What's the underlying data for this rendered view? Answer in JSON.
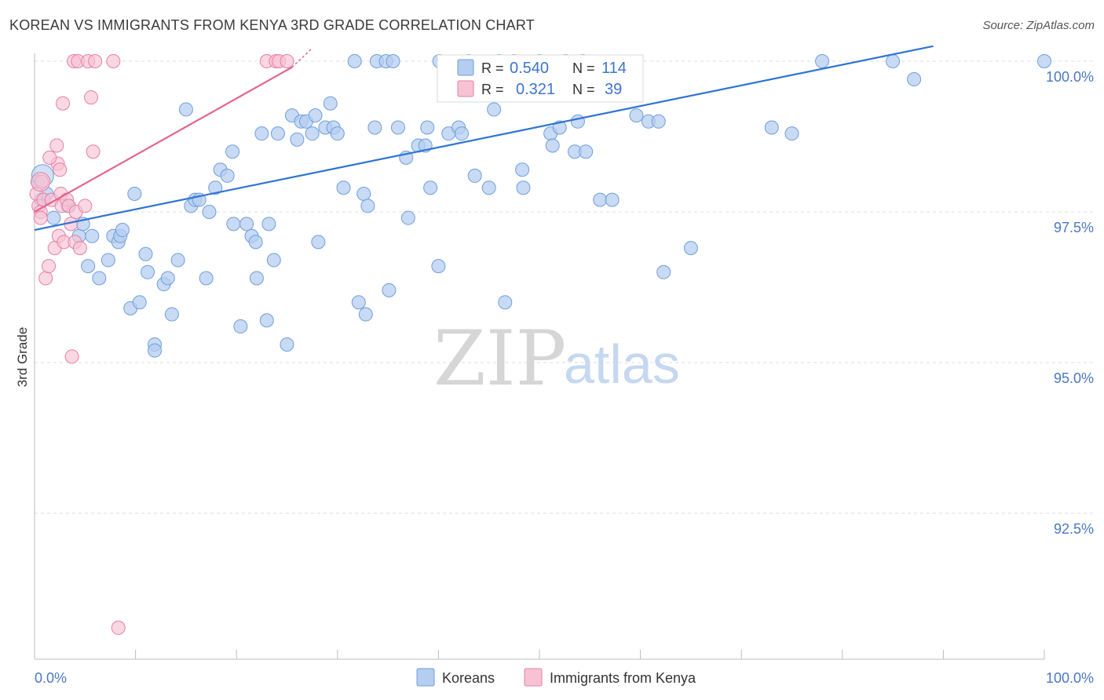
{
  "title": "KOREAN VS IMMIGRANTS FROM KENYA 3RD GRADE CORRELATION CHART",
  "source": "Source: ZipAtlas.com",
  "watermark": {
    "zip": "ZIP",
    "atlas": "atlas"
  },
  "colors": {
    "blue": "#6f9fdc",
    "blue_fill": "#b5cdf0",
    "blue_line": "#2e74d2",
    "pink": "#e77fa3",
    "pink_fill": "#f7c3d4",
    "pink_line": "#e3648f",
    "grid": "#dcdcdc",
    "tick_text": "#4a78c2"
  },
  "legend": {
    "rows": [
      {
        "r_label": "R =",
        "r_value": "0.540",
        "n_label": "N =",
        "n_value": "114",
        "series": "blue"
      },
      {
        "r_label": "R =",
        "r_value": "0.321",
        "n_label": "N =",
        "n_value": "39",
        "series": "pink"
      }
    ]
  },
  "bottom_legend": [
    {
      "label": "Koreans",
      "series": "blue"
    },
    {
      "label": "Immigrants from Kenya",
      "series": "pink"
    }
  ],
  "chart_data": {
    "type": "scatter",
    "title": "KOREAN VS IMMIGRANTS FROM KENYA 3RD GRADE CORRELATION CHART",
    "xlabel": "",
    "ylabel": "3rd Grade",
    "xlim": [
      0,
      100
    ],
    "ylim": [
      90.0,
      100.2
    ],
    "y_ticks": [
      100.0,
      97.5,
      95.0,
      92.5
    ],
    "y_tick_labels": [
      "100.0%",
      "97.5%",
      "95.0%",
      "92.5%"
    ],
    "x_tick_labels": {
      "left": "0.0%",
      "right": "100.0%"
    },
    "grid": true,
    "series": [
      {
        "name": "Koreans",
        "color": "blue",
        "trend": {
          "x": [
            0,
            89
          ],
          "y": [
            97.2,
            100.25
          ]
        },
        "points": [
          [
            0.3,
            98.0
          ],
          [
            0.7,
            97.7
          ],
          [
            1.2,
            97.8
          ],
          [
            1.9,
            97.4
          ],
          [
            3.3,
            97.6
          ],
          [
            4.4,
            97.1
          ],
          [
            4.8,
            97.3
          ],
          [
            5.3,
            96.6
          ],
          [
            5.7,
            97.1
          ],
          [
            6.4,
            96.4
          ],
          [
            7.3,
            96.7
          ],
          [
            7.8,
            97.1
          ],
          [
            8.3,
            97.0
          ],
          [
            8.5,
            97.1
          ],
          [
            8.7,
            97.2
          ],
          [
            9.5,
            95.9
          ],
          [
            9.9,
            97.8
          ],
          [
            10.4,
            96.0
          ],
          [
            11.0,
            96.8
          ],
          [
            11.2,
            96.5
          ],
          [
            11.9,
            95.3
          ],
          [
            11.9,
            95.2
          ],
          [
            12.8,
            96.3
          ],
          [
            13.2,
            96.4
          ],
          [
            13.6,
            95.8
          ],
          [
            14.2,
            96.7
          ],
          [
            15.0,
            99.2
          ],
          [
            15.5,
            97.6
          ],
          [
            15.9,
            97.7
          ],
          [
            16.3,
            97.7
          ],
          [
            17.0,
            96.4
          ],
          [
            17.3,
            97.5
          ],
          [
            17.9,
            97.9
          ],
          [
            18.4,
            98.2
          ],
          [
            19.1,
            98.1
          ],
          [
            19.6,
            98.5
          ],
          [
            19.7,
            97.3
          ],
          [
            20.4,
            95.6
          ],
          [
            21.0,
            97.3
          ],
          [
            21.5,
            97.1
          ],
          [
            21.9,
            97.0
          ],
          [
            22.5,
            98.8
          ],
          [
            23.0,
            95.7
          ],
          [
            23.2,
            97.3
          ],
          [
            23.7,
            96.7
          ],
          [
            24.1,
            98.8
          ],
          [
            25.0,
            95.3
          ],
          [
            25.5,
            99.1
          ],
          [
            26.0,
            98.7
          ],
          [
            26.4,
            99.0
          ],
          [
            26.9,
            99.0
          ],
          [
            27.5,
            98.8
          ],
          [
            27.8,
            99.1
          ],
          [
            28.1,
            97.0
          ],
          [
            28.8,
            98.9
          ],
          [
            29.3,
            99.3
          ],
          [
            29.6,
            98.9
          ],
          [
            30.0,
            98.8
          ],
          [
            30.6,
            97.9
          ],
          [
            31.7,
            100.0
          ],
          [
            32.1,
            96.0
          ],
          [
            32.6,
            97.8
          ],
          [
            32.8,
            95.8
          ],
          [
            33.7,
            98.9
          ],
          [
            33.9,
            100.0
          ],
          [
            34.8,
            100.0
          ],
          [
            35.1,
            96.2
          ],
          [
            35.5,
            100.0
          ],
          [
            36.0,
            98.9
          ],
          [
            36.8,
            98.4
          ],
          [
            37.0,
            97.4
          ],
          [
            38.0,
            98.6
          ],
          [
            38.7,
            98.6
          ],
          [
            38.9,
            98.9
          ],
          [
            39.2,
            97.9
          ],
          [
            40.0,
            96.6
          ],
          [
            40.1,
            100.0
          ],
          [
            41.0,
            98.8
          ],
          [
            42.0,
            98.9
          ],
          [
            42.3,
            98.8
          ],
          [
            43.0,
            100.0
          ],
          [
            43.6,
            98.1
          ],
          [
            45.0,
            97.9
          ],
          [
            46.0,
            100.0
          ],
          [
            46.6,
            96.0
          ],
          [
            47.5,
            100.0
          ],
          [
            48.3,
            98.2
          ],
          [
            48.4,
            97.9
          ],
          [
            50.0,
            100.0
          ],
          [
            51.1,
            98.8
          ],
          [
            51.3,
            98.6
          ],
          [
            52.0,
            98.9
          ],
          [
            52.6,
            100.0
          ],
          [
            53.5,
            98.5
          ],
          [
            53.8,
            99.0
          ],
          [
            54.3,
            100.0
          ],
          [
            54.6,
            98.5
          ],
          [
            56.0,
            97.7
          ],
          [
            57.2,
            97.7
          ],
          [
            59.6,
            99.1
          ],
          [
            60.8,
            99.0
          ],
          [
            61.8,
            99.0
          ],
          [
            62.3,
            96.5
          ],
          [
            65.0,
            96.9
          ],
          [
            73.0,
            98.9
          ],
          [
            75.0,
            98.8
          ],
          [
            85.0,
            100.0
          ],
          [
            87.1,
            99.7
          ],
          [
            100.0,
            100.0
          ],
          [
            78.0,
            100.0
          ],
          [
            45.5,
            99.2
          ],
          [
            33.0,
            97.6
          ],
          [
            22.0,
            96.4
          ]
        ]
      },
      {
        "name": "Immigrants from Kenya",
        "color": "pink",
        "trend": {
          "x": [
            0,
            25.5
          ],
          "y": [
            97.5,
            99.9
          ]
        },
        "trend_dashed": {
          "x": [
            25.5,
            27.4
          ],
          "y": [
            99.9,
            100.2
          ]
        },
        "points": [
          [
            0.2,
            97.8
          ],
          [
            0.4,
            97.6
          ],
          [
            0.6,
            97.5
          ],
          [
            0.6,
            97.4
          ],
          [
            0.7,
            98.0
          ],
          [
            0.9,
            97.7
          ],
          [
            1.1,
            96.4
          ],
          [
            1.4,
            96.6
          ],
          [
            1.7,
            97.7
          ],
          [
            2.0,
            96.9
          ],
          [
            2.2,
            98.6
          ],
          [
            2.3,
            98.3
          ],
          [
            2.4,
            97.1
          ],
          [
            2.5,
            98.2
          ],
          [
            2.6,
            97.8
          ],
          [
            2.7,
            97.6
          ],
          [
            2.8,
            99.3
          ],
          [
            2.9,
            97.0
          ],
          [
            3.2,
            97.7
          ],
          [
            3.4,
            97.6
          ],
          [
            3.6,
            97.3
          ],
          [
            3.7,
            95.1
          ],
          [
            3.9,
            100.0
          ],
          [
            4.0,
            97.0
          ],
          [
            4.1,
            97.5
          ],
          [
            4.3,
            100.0
          ],
          [
            4.5,
            96.9
          ],
          [
            5.0,
            97.6
          ],
          [
            5.3,
            100.0
          ],
          [
            5.6,
            99.4
          ],
          [
            5.8,
            98.5
          ],
          [
            6.0,
            100.0
          ],
          [
            7.8,
            100.0
          ],
          [
            8.3,
            90.6
          ],
          [
            23.0,
            100.0
          ],
          [
            23.9,
            100.0
          ],
          [
            24.2,
            100.0
          ],
          [
            25.0,
            100.0
          ],
          [
            1.5,
            98.4
          ]
        ]
      }
    ]
  }
}
